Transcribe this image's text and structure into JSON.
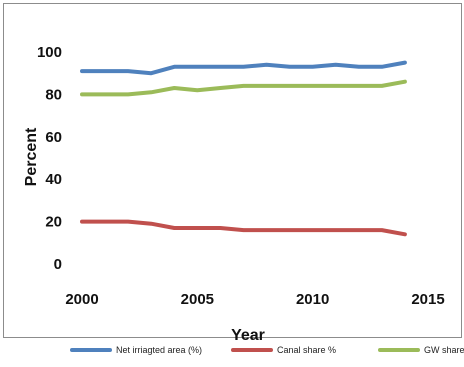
{
  "chart_data": {
    "type": "line",
    "title": "",
    "xlabel": "Year",
    "ylabel": "Percent",
    "xlim": [
      2000,
      2015
    ],
    "ylim": [
      0,
      100
    ],
    "x_ticks": [
      2000,
      2005,
      2010,
      2015
    ],
    "y_ticks": [
      0,
      20,
      40,
      60,
      80,
      100
    ],
    "x": [
      2000,
      2001,
      2002,
      2003,
      2004,
      2005,
      2006,
      2007,
      2008,
      2009,
      2010,
      2011,
      2012,
      2013,
      2014
    ],
    "series": [
      {
        "name": "Net irriagted area (%)",
        "color": "#4f81bd",
        "values": [
          91,
          91,
          91,
          90,
          93,
          93,
          93,
          93,
          94,
          93,
          93,
          94,
          93,
          93,
          95
        ]
      },
      {
        "name": "Canal share %",
        "color": "#c0504d",
        "values": [
          20,
          20,
          20,
          19,
          17,
          17,
          17,
          16,
          16,
          16,
          16,
          16,
          16,
          16,
          14
        ]
      },
      {
        "name": "GW share %",
        "color": "#9bbb59",
        "values": [
          80,
          80,
          80,
          81,
          83,
          82,
          83,
          84,
          84,
          84,
          84,
          84,
          84,
          84,
          86
        ]
      }
    ],
    "grid": false,
    "legend_position": "bottom"
  }
}
